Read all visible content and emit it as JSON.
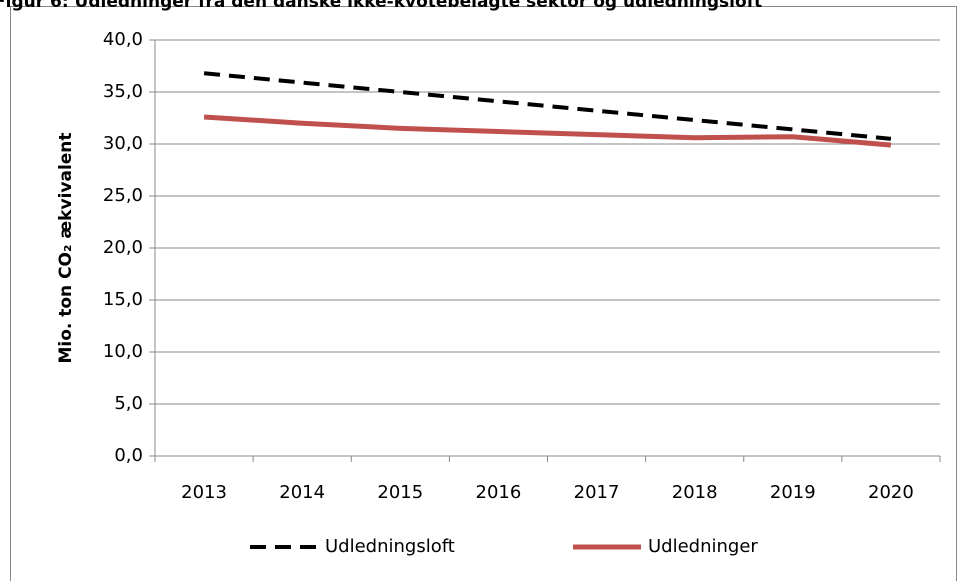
{
  "chart_data": {
    "type": "line",
    "title": "Figur 6: Udledninger fra den danske ikke-kvotebelagte sektor og udledningsloft",
    "y_label": "Mio. ton CO₂ ækvivalent",
    "categories": [
      "2013",
      "2014",
      "2015",
      "2016",
      "2017",
      "2018",
      "2019",
      "2020"
    ],
    "series": [
      {
        "name": "Udledningsloft",
        "color": "#000000",
        "dashed": true,
        "values": [
          36.8,
          35.9,
          35.0,
          34.1,
          33.2,
          32.3,
          31.4,
          30.5
        ]
      },
      {
        "name": "Udledninger",
        "color": "#c0504d",
        "dashed": false,
        "values": [
          32.6,
          32.0,
          31.5,
          31.2,
          30.9,
          30.6,
          30.7,
          29.9
        ]
      }
    ],
    "ylim": [
      0,
      40
    ],
    "yticks": [
      {
        "value": 0,
        "label": "0,0"
      },
      {
        "value": 5,
        "label": "5,0"
      },
      {
        "value": 10,
        "label": "10,0"
      },
      {
        "value": 15,
        "label": "15,0"
      },
      {
        "value": 20,
        "label": "20,0"
      },
      {
        "value": 25,
        "label": "25,0"
      },
      {
        "value": 30,
        "label": "30,0"
      },
      {
        "value": 35,
        "label": "35,0"
      },
      {
        "value": 40,
        "label": "40,0"
      }
    ],
    "grid": true,
    "legend": "bottom"
  }
}
